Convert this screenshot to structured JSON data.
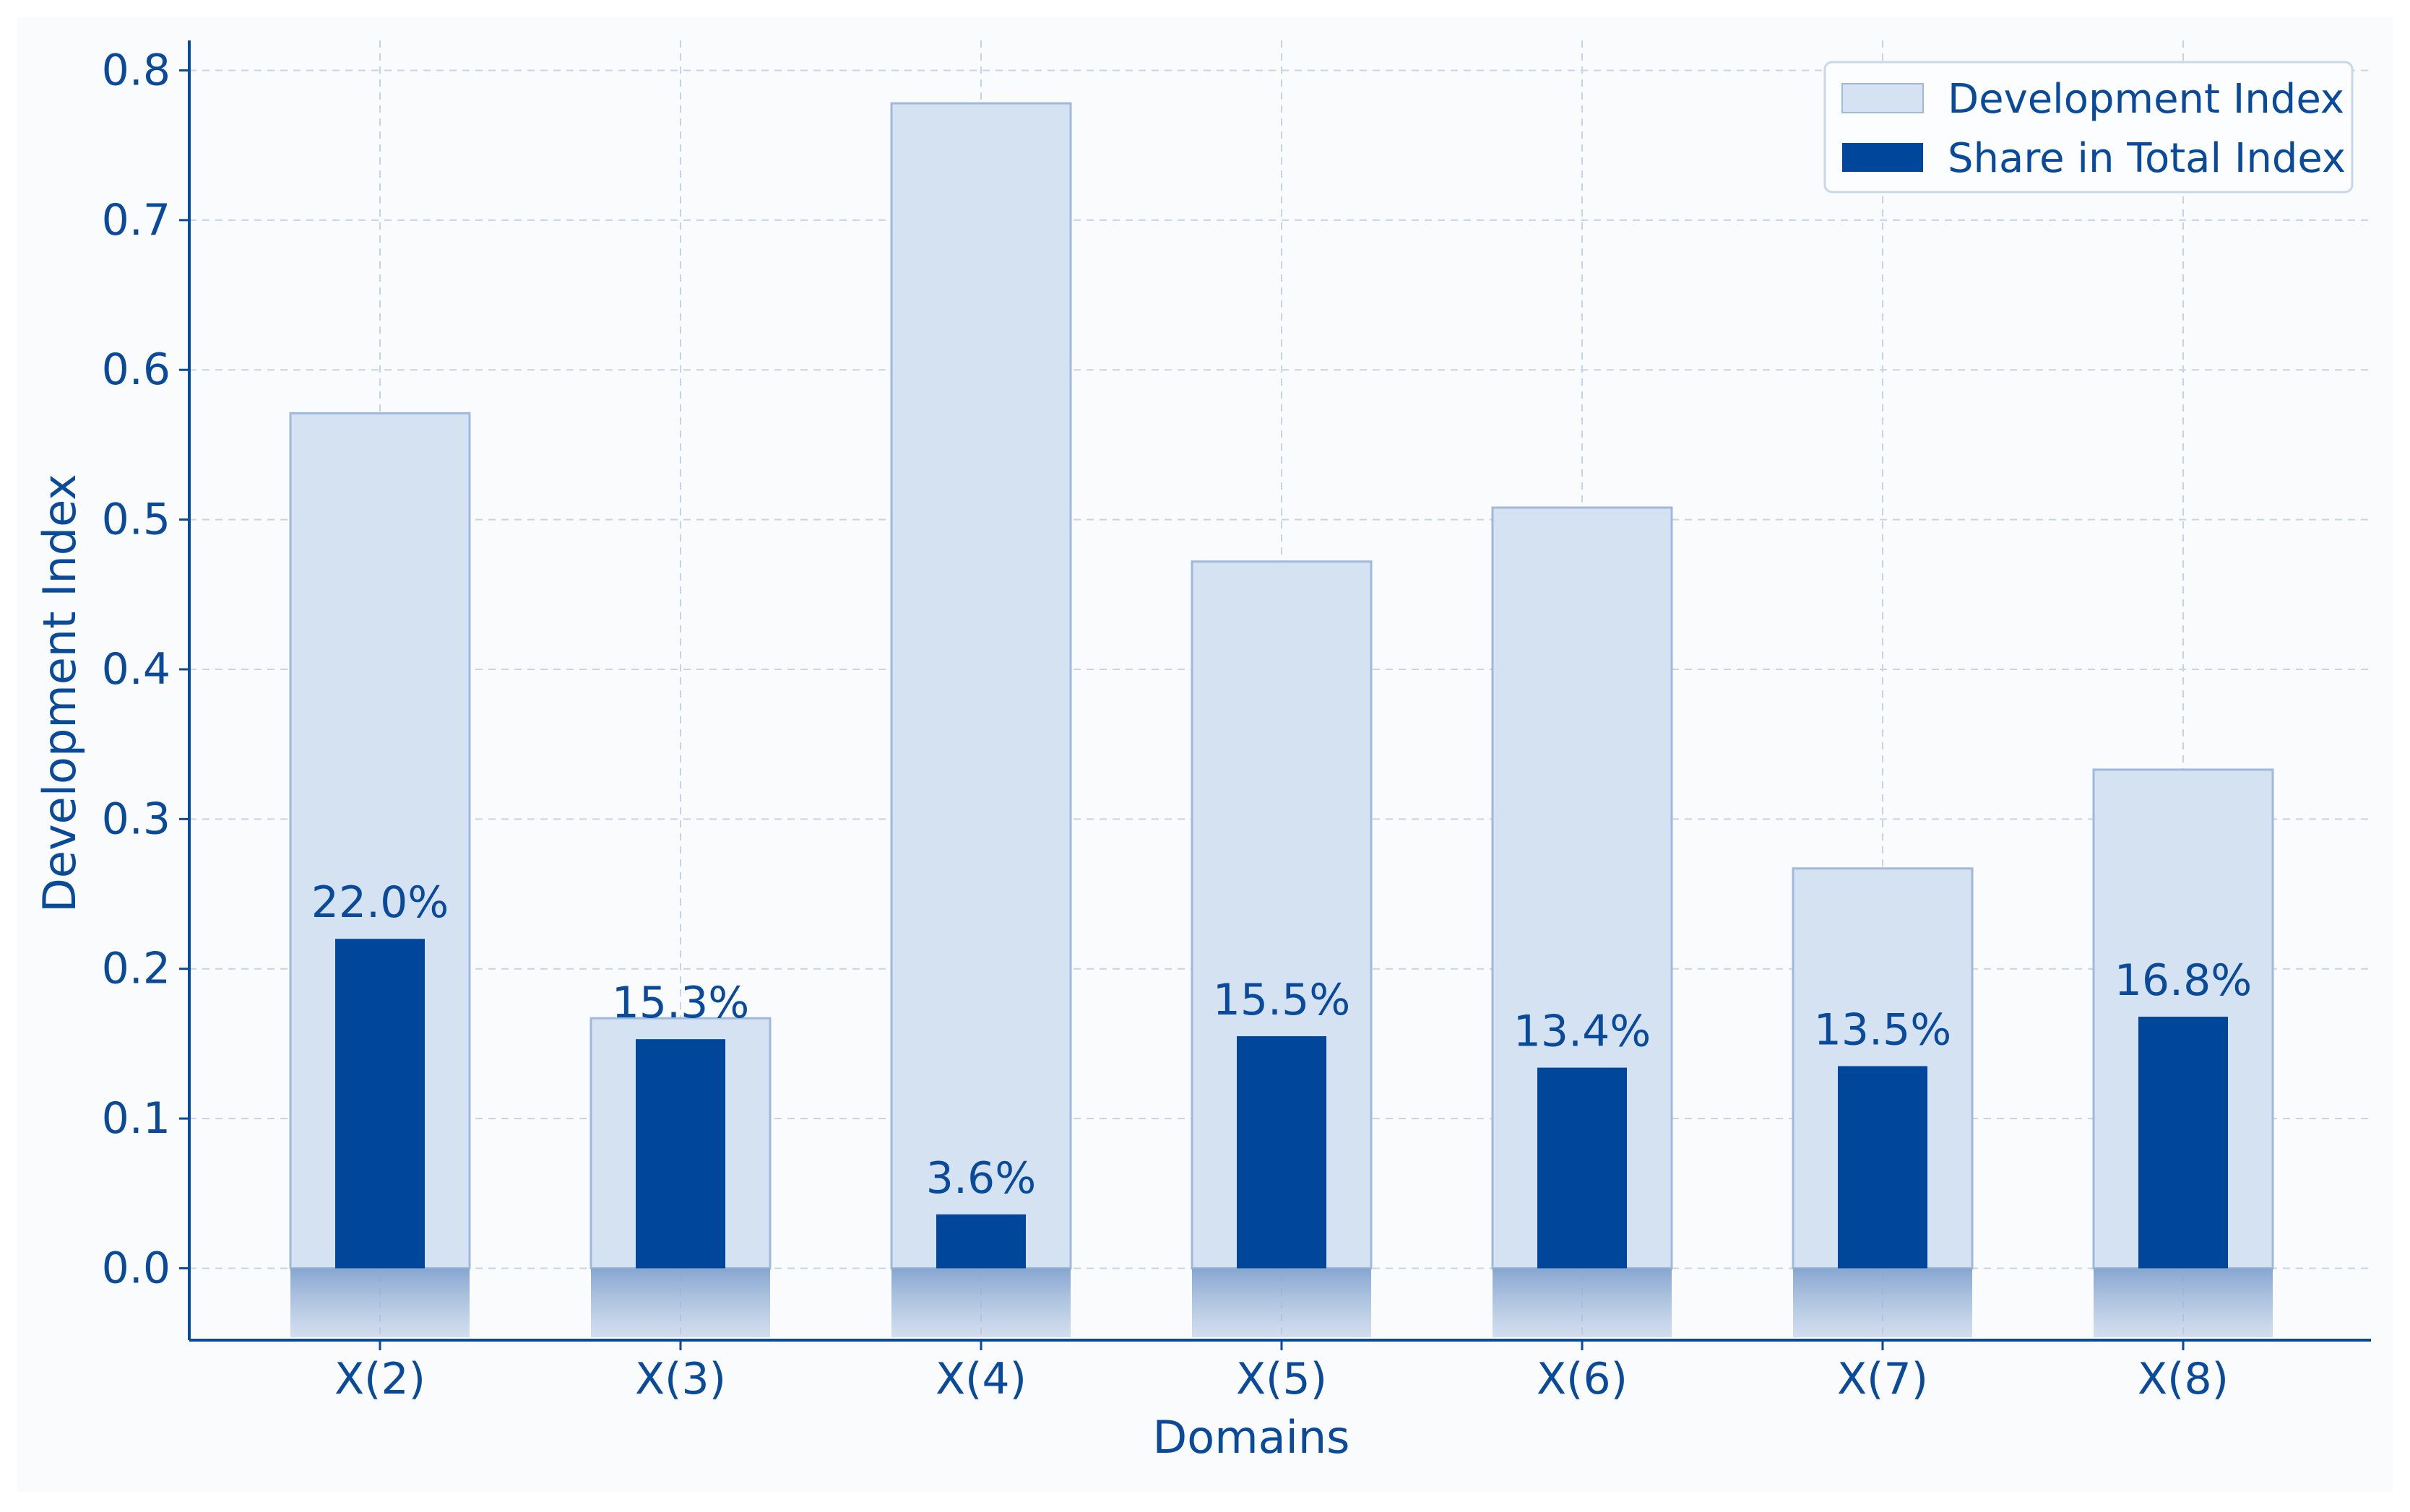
{
  "chart_data": {
    "type": "bar",
    "title": "",
    "xlabel": "Domains",
    "ylabel": "Development Index",
    "categories": [
      "X(2)",
      "X(3)",
      "X(4)",
      "X(5)",
      "X(6)",
      "X(7)",
      "X(8)"
    ],
    "series": [
      {
        "name": "Development Index",
        "values": [
          0.571,
          0.167,
          0.778,
          0.472,
          0.508,
          0.267,
          0.333
        ],
        "color": "#d5e2f1"
      },
      {
        "name": "Share in Total Index",
        "values": [
          0.22,
          0.153,
          0.036,
          0.155,
          0.134,
          0.135,
          0.168
        ],
        "color": "#00479b"
      }
    ],
    "data_labels": [
      "22.0%",
      "15.3%",
      "3.6%",
      "15.5%",
      "13.4%",
      "13.5%",
      "16.8%"
    ],
    "yticks": [
      0.0,
      0.1,
      0.2,
      0.3,
      0.4,
      0.5,
      0.6,
      0.7,
      0.8
    ],
    "ytick_labels": [
      "0.0",
      "0.1",
      "0.2",
      "0.3",
      "0.4",
      "0.5",
      "0.6",
      "0.7",
      "0.8"
    ],
    "ylim": [
      -0.048,
      0.82
    ],
    "grid": true,
    "legend_position": "top-right",
    "colors": {
      "axis": "#0a4a9a",
      "text": "#0a4a9a",
      "grid": "#c6d4e6",
      "plot_background": "#fafbfc",
      "bar_edge": "#9fb9da",
      "base_shadow": "#8aaad3"
    }
  }
}
